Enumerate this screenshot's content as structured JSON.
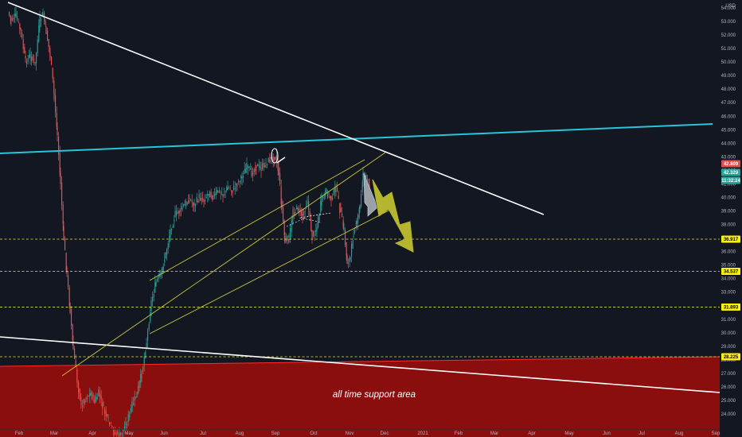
{
  "chart_data": {
    "type": "candlestick",
    "currency": "USD",
    "y_axis": {
      "min": 24000,
      "max": 54500,
      "ticks": [
        "54.000",
        "53.000",
        "52.000",
        "51.000",
        "50.000",
        "49.000",
        "48.000",
        "47.000",
        "46.000",
        "45.000",
        "44.000",
        "43.000",
        "42.000",
        "41.000",
        "40.000",
        "39.000",
        "38.000",
        "37.000",
        "36.000",
        "35.000",
        "34.000",
        "33.000",
        "32.000",
        "31.000",
        "30.000",
        "29.000",
        "28.000",
        "27.000",
        "26.000",
        "25.000",
        "24.000"
      ]
    },
    "x_axis": {
      "labels": [
        "Feb",
        "Mar",
        "Apr",
        "May",
        "Jun",
        "Jul",
        "Aug",
        "Sep",
        "Oct",
        "Nov",
        "Dec",
        "2021",
        "Feb",
        "Mar",
        "Apr",
        "May",
        "Jun",
        "Jul",
        "Aug",
        "Sep"
      ]
    },
    "price_tags": [
      {
        "text": "42.809",
        "value": 42809,
        "color": "#e04c4c",
        "text_color": "#ffffff"
      },
      {
        "text": "42.329",
        "value": 42329,
        "color": "#26a69a",
        "text_color": "#ffffff"
      },
      {
        "text": "11:32:24",
        "value": 41900,
        "color": "#26a69a",
        "text_color": "#ffffff"
      },
      {
        "text": "36.917",
        "value": 36917,
        "color": "#fff200",
        "text_color": "#000000"
      },
      {
        "text": "34.537",
        "value": 34537,
        "color": "#fff200",
        "text_color": "#000000"
      },
      {
        "text": "31.893",
        "value": 31893,
        "color": "#fff200",
        "text_color": "#000000"
      },
      {
        "text": "28.225",
        "value": 28225,
        "color": "#fff200",
        "text_color": "#000000"
      }
    ],
    "horizontal_levels": [
      36917,
      34537,
      31893,
      28225
    ],
    "support_zone": {
      "top": 28225,
      "bottom": 24000,
      "color": "#8b0e0e"
    },
    "annotations": [
      {
        "text": "all time support area"
      }
    ],
    "colors": {
      "up": "#26a69a",
      "down": "#ef5350",
      "background": "#131722",
      "cyan_line": "#26c6da",
      "channel": "#c8c83c",
      "arrow": "#b5b52e",
      "level": "#e6e63a"
    },
    "grid": false
  }
}
